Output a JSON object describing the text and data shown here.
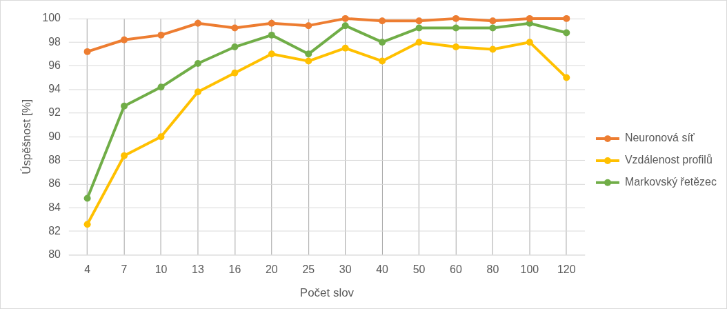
{
  "chart_data": {
    "type": "line",
    "xlabel": "Počet slov",
    "ylabel": "Úspěšnost [%]",
    "categories": [
      "4",
      "7",
      "10",
      "13",
      "16",
      "20",
      "25",
      "30",
      "40",
      "50",
      "60",
      "80",
      "100",
      "120"
    ],
    "series": [
      {
        "name": "Neuronová síť",
        "color": "#ed7d31",
        "values": [
          97.2,
          98.2,
          98.6,
          99.6,
          99.2,
          99.6,
          99.4,
          100,
          99.8,
          99.8,
          100,
          99.8,
          100,
          100
        ]
      },
      {
        "name": "Vzdálenost profilů",
        "color": "#ffc000",
        "values": [
          82.6,
          88.4,
          90,
          93.8,
          95.4,
          97,
          96.4,
          97.5,
          96.4,
          98,
          97.6,
          97.4,
          98,
          95
        ]
      },
      {
        "name": "Markovský řetězec",
        "color": "#70ad47",
        "values": [
          84.8,
          92.6,
          94.2,
          96.2,
          97.6,
          98.6,
          97,
          99.4,
          98,
          99.2,
          99.2,
          99.2,
          99.6,
          98.8
        ]
      }
    ],
    "ylim": [
      80,
      100
    ],
    "yticks": [
      80,
      82,
      84,
      86,
      88,
      90,
      92,
      94,
      96,
      98,
      100
    ],
    "grid": true,
    "legend": "right",
    "marker": "circle"
  }
}
